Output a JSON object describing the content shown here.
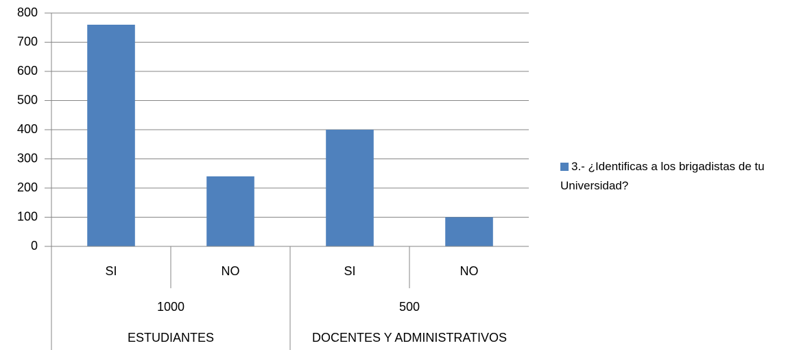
{
  "chart_data": {
    "type": "bar",
    "categories": [
      "SI",
      "NO",
      "SI",
      "NO"
    ],
    "category_groups": [
      {
        "labels": [
          "1000",
          "500"
        ]
      },
      {
        "labels": [
          "ESTUDIANTES",
          "DOCENTES Y ADMINISTRATIVOS"
        ]
      }
    ],
    "series": [
      {
        "name": "3.- ¿Identificas a los brigadistas de tu Universidad?",
        "color": "#4f81bd",
        "values": [
          760,
          240,
          400,
          100
        ]
      }
    ],
    "ylim": [
      0,
      800
    ],
    "yticks": [
      0,
      100,
      200,
      300,
      400,
      500,
      600,
      700,
      800
    ],
    "grid": true,
    "legend": "right"
  }
}
